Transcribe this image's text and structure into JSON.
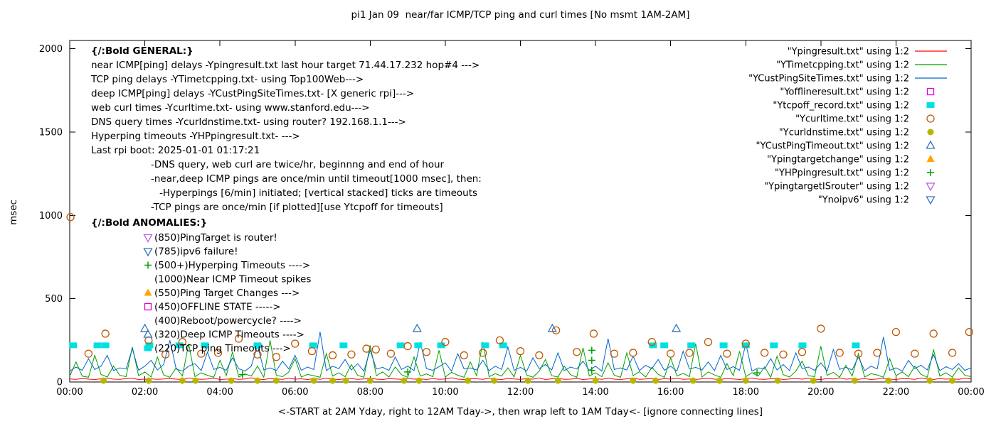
{
  "chart_data": {
    "type": "scatter",
    "title": "pi1 Jan 09  near/far ICMP/TCP ping and curl times [No msmt 1AM-2AM]",
    "ylabel": "msec",
    "xlabel": "<-START at 2AM Yday, right to 12AM Tday->, then wrap left to 1AM Tday<- [ignore connecting lines]",
    "legend_position": "top-right",
    "axes": {
      "xlim_hours": [
        0,
        24
      ],
      "ylim": [
        0,
        2050
      ],
      "y_ticks": [
        0,
        500,
        1000,
        1500,
        2000
      ],
      "x_tick_hours": [
        0,
        2,
        4,
        6,
        8,
        10,
        12,
        14,
        16,
        18,
        20,
        22,
        24
      ],
      "x_tick_labels": [
        "00:00",
        "02:00",
        "04:00",
        "06:00",
        "08:00",
        "10:00",
        "12:00",
        "14:00",
        "16:00",
        "18:00",
        "20:00",
        "22:00",
        "00:00"
      ]
    },
    "series": [
      {
        "id": "ypingresult",
        "label": "\"Ypingresult.txt\" using 1:2",
        "kind": "line",
        "color": "#ff0000",
        "y_values": [
          18,
          16,
          21,
          17,
          15,
          19,
          23,
          17,
          16,
          20,
          22,
          15,
          17,
          19,
          16,
          18,
          21,
          17,
          15,
          24,
          19,
          16,
          18,
          22,
          15,
          17,
          20,
          16,
          18,
          25,
          17,
          15,
          21,
          18,
          16,
          22,
          17,
          19,
          15,
          20,
          16,
          23,
          17,
          15,
          19,
          21,
          16,
          18,
          24,
          17,
          15,
          20,
          18,
          16,
          22,
          17,
          19,
          15,
          21,
          16,
          18,
          25,
          17,
          15,
          20,
          19,
          16,
          23,
          17,
          15,
          21,
          18,
          16,
          20,
          17,
          24,
          15,
          19,
          22,
          16,
          17,
          21,
          15,
          18,
          20,
          16,
          23,
          17,
          15,
          19,
          24,
          16,
          18,
          21,
          15,
          20,
          17,
          22,
          16,
          18,
          15,
          19,
          23,
          17,
          16,
          21,
          18,
          15,
          20,
          24,
          17,
          16,
          19,
          22,
          15,
          18,
          21,
          17,
          23,
          16,
          15,
          20,
          18,
          24,
          17,
          19,
          16,
          21,
          15,
          18,
          22,
          17,
          15,
          20,
          19,
          16,
          23,
          18,
          15,
          21,
          17,
          19,
          16,
          22,
          18
        ]
      },
      {
        "id": "ytimetcpping",
        "label": "\"YTimetcpping.txt\" using 1:2",
        "kind": "line",
        "color": "#00a000",
        "y_values": [
          35,
          120,
          35,
          28,
          160,
          45,
          30,
          95,
          40,
          32,
          210,
          38,
          60,
          30,
          150,
          42,
          28,
          85,
          36,
          230,
          32,
          55,
          40,
          28,
          130,
          38,
          180,
          30,
          48,
          36,
          95,
          28,
          250,
          40,
          32,
          60,
          140,
          30,
          45,
          38,
          28,
          170,
          36,
          55,
          32,
          105,
          40,
          28,
          220,
          38,
          60,
          30,
          90,
          44,
          28,
          150,
          36,
          48,
          32,
          190,
          30,
          58,
          40,
          28,
          120,
          38,
          240,
          32,
          50,
          36,
          85,
          30,
          160,
          42,
          28,
          65,
          135,
          38,
          30,
          95,
          44,
          28,
          205,
          36,
          55,
          32,
          115,
          40,
          28,
          175,
          38,
          62,
          30,
          88,
          46,
          28,
          145,
          36,
          52,
          32,
          230,
          30,
          60,
          42,
          28,
          110,
          38,
          185,
          32,
          55,
          36,
          90,
          28,
          155,
          44,
          30,
          65,
          125,
          38,
          32,
          215,
          40,
          58,
          28,
          100,
          36,
          170,
          30,
          50,
          42,
          28,
          140,
          38,
          60,
          32,
          95,
          46,
          28,
          195,
          36,
          55,
          30,
          85,
          40,
          32
        ]
      },
      {
        "id": "ycustpingsitetimes",
        "label": "\"YCustPingSiteTimes.txt\" using 1:2",
        "kind": "line",
        "color": "#0066cc",
        "y_values": [
          65,
          90,
          70,
          140,
          75,
          95,
          160,
          68,
          85,
          78,
          200,
          70,
          95,
          130,
          72,
          105,
          250,
          78,
          65,
          95,
          110,
          68,
          180,
          75,
          88,
          70,
          145,
          80,
          65,
          95,
          220,
          72,
          85,
          68,
          125,
          78,
          160,
          70,
          90,
          75,
          300,
          68,
          95,
          80,
          135,
          72,
          110,
          65,
          190,
          78,
          88,
          70,
          150,
          75,
          95,
          68,
          240,
          80,
          70,
          92,
          115,
          65,
          170,
          78,
          85,
          72,
          130,
          68,
          95,
          75,
          210,
          70,
          88,
          65,
          145,
          80,
          105,
          72,
          175,
          68,
          90,
          78,
          125,
          70,
          95,
          65,
          260,
          75,
          85,
          72,
          155,
          68,
          100,
          80,
          135,
          70,
          95,
          65,
          185,
          78,
          88,
          72,
          120,
          68,
          160,
          75,
          92,
          70,
          230,
          65,
          85,
          78,
          140,
          72,
          105,
          68,
          175,
          80,
          90,
          70,
          115,
          65,
          195,
          75,
          88,
          72,
          150,
          68,
          95,
          78,
          270,
          70,
          85,
          65,
          130,
          80,
          100,
          72,
          165,
          68,
          92,
          75,
          110,
          70,
          85
        ]
      },
      {
        "id": "yofflineresult",
        "label": "\"Yofflineresult.txt\" using 1:2",
        "kind": "points",
        "marker": "square-open",
        "color": "#e000e0",
        "points": []
      },
      {
        "id": "ytcpoff_record",
        "label": "\"Ytcpoff_record.txt\" using 1:2",
        "kind": "points",
        "marker": "square-filled",
        "color": "#00e0e0",
        "points": [
          [
            0.09,
            220
          ],
          [
            0.74,
            220
          ],
          [
            0.95,
            220
          ],
          [
            2.12,
            220
          ],
          [
            2.92,
            220
          ],
          [
            3.6,
            220
          ],
          [
            5.0,
            220
          ],
          [
            6.48,
            220
          ],
          [
            7.29,
            220
          ],
          [
            8.81,
            220
          ],
          [
            9.28,
            220
          ],
          [
            9.89,
            220
          ],
          [
            11.06,
            220
          ],
          [
            11.54,
            220
          ],
          [
            15.53,
            220
          ],
          [
            15.83,
            220
          ],
          [
            16.55,
            220
          ],
          [
            17.41,
            220
          ],
          [
            18.0,
            220
          ],
          [
            18.75,
            220
          ],
          [
            19.51,
            220
          ],
          [
            20.93,
            220
          ]
        ]
      },
      {
        "id": "ycurltime",
        "label": "\"Ycurltime.txt\" using 1:2",
        "kind": "points",
        "marker": "circle-open",
        "color": "#c05800",
        "points": [
          [
            0.02,
            990
          ],
          [
            0.5,
            170
          ],
          [
            0.95,
            290
          ],
          [
            2.1,
            250
          ],
          [
            2.55,
            165
          ],
          [
            3.0,
            240
          ],
          [
            3.5,
            170
          ],
          [
            3.95,
            175
          ],
          [
            4.5,
            260
          ],
          [
            5.0,
            165
          ],
          [
            5.5,
            150
          ],
          [
            6.0,
            230
          ],
          [
            6.45,
            185
          ],
          [
            7.0,
            160
          ],
          [
            7.5,
            165
          ],
          [
            7.9,
            200
          ],
          [
            8.15,
            195
          ],
          [
            8.55,
            170
          ],
          [
            9.0,
            215
          ],
          [
            9.5,
            180
          ],
          [
            10.0,
            240
          ],
          [
            10.5,
            160
          ],
          [
            11.0,
            175
          ],
          [
            11.45,
            250
          ],
          [
            12.0,
            185
          ],
          [
            12.5,
            160
          ],
          [
            12.95,
            310
          ],
          [
            13.5,
            180
          ],
          [
            13.95,
            290
          ],
          [
            14.5,
            170
          ],
          [
            15.0,
            175
          ],
          [
            15.5,
            240
          ],
          [
            16.0,
            170
          ],
          [
            16.5,
            175
          ],
          [
            17.0,
            240
          ],
          [
            17.5,
            170
          ],
          [
            18.0,
            230
          ],
          [
            18.5,
            175
          ],
          [
            19.0,
            165
          ],
          [
            19.5,
            180
          ],
          [
            20.0,
            320
          ],
          [
            20.5,
            175
          ],
          [
            21.0,
            170
          ],
          [
            21.5,
            175
          ],
          [
            22.0,
            300
          ],
          [
            22.5,
            170
          ],
          [
            23.0,
            290
          ],
          [
            23.5,
            175
          ],
          [
            23.95,
            300
          ]
        ]
      },
      {
        "id": "ycurldnstime",
        "label": "\"Ycurldnstime.txt\" using 1:2",
        "kind": "points",
        "marker": "circle-filled",
        "color": "#b8b500",
        "points": [
          [
            0.9,
            8
          ],
          [
            2.1,
            8
          ],
          [
            3.0,
            8
          ],
          [
            3.35,
            8
          ],
          [
            4.3,
            8
          ],
          [
            5.0,
            8
          ],
          [
            5.5,
            8
          ],
          [
            6.5,
            8
          ],
          [
            7.0,
            8
          ],
          [
            7.35,
            8
          ],
          [
            8.0,
            8
          ],
          [
            8.9,
            8
          ],
          [
            9.3,
            8
          ],
          [
            10.6,
            8
          ],
          [
            11.3,
            8
          ],
          [
            12.2,
            8
          ],
          [
            13.0,
            8
          ],
          [
            14.0,
            8
          ],
          [
            15.0,
            8
          ],
          [
            15.6,
            8
          ],
          [
            16.6,
            8
          ],
          [
            17.3,
            8
          ],
          [
            18.0,
            8
          ],
          [
            18.85,
            8
          ],
          [
            19.8,
            8
          ],
          [
            20.9,
            8
          ],
          [
            21.8,
            8
          ],
          [
            22.9,
            8
          ],
          [
            23.5,
            8
          ]
        ]
      },
      {
        "id": "ycustpingtimeout",
        "label": "\"YCustPingTimeout.txt\" using 1:2",
        "kind": "points",
        "marker": "triangle-up-open",
        "color": "#3377bb",
        "points": [
          [
            2.0,
            320
          ],
          [
            9.25,
            320
          ],
          [
            12.85,
            320
          ],
          [
            16.15,
            320
          ]
        ]
      },
      {
        "id": "ypingtargetchange",
        "label": "\"Ypingtargetchange\" using 1:2",
        "kind": "points",
        "marker": "triangle-up-filled",
        "color": "#ffa500",
        "points": []
      },
      {
        "id": "yhppingresult",
        "label": "\"YHPpingresult.txt\" using 1:2",
        "kind": "points",
        "marker": "plus",
        "color": "#00a000",
        "points": [
          [
            4.6,
            45
          ],
          [
            9.0,
            60
          ],
          [
            13.9,
            70
          ],
          [
            13.9,
            130
          ],
          [
            13.9,
            190
          ],
          [
            18.3,
            55
          ]
        ]
      },
      {
        "id": "ypingtargetisrouter",
        "label": "\"YpingtargetISrouter\" using 1:2",
        "kind": "points",
        "marker": "triangle-down-open",
        "color": "#bb66dd",
        "points": []
      },
      {
        "id": "ynoipv6",
        "label": "\"Ynoipv6\" using 1:2",
        "kind": "points",
        "marker": "triangle-down-open",
        "color": "#3377bb",
        "points": []
      }
    ],
    "annotations": {
      "general": {
        "heading": "{/:Bold GENERAL:}",
        "lines": [
          {
            "text": "near ICMP[ping] delays -Ypingresult.txt last hour target 71.44.17.232 hop#4 --->",
            "indent": 0
          },
          {
            "text": "TCP ping delays -YTimetcpping.txt- using Top100Web--->",
            "indent": 0
          },
          {
            "text": "deep ICMP[ping] delays -YCustPingSiteTimes.txt- [X generic rpi]--->",
            "indent": 0
          },
          {
            "text": "web curl times -Ycurltime.txt- using www.stanford.edu--->",
            "indent": 0
          },
          {
            "text": "DNS query times -Ycurldnstime.txt- using router? 192.168.1.1--->",
            "indent": 0
          },
          {
            "text": "Hyperping timeouts -YHPpingresult.txt- --->",
            "indent": 0
          },
          {
            "text": "Last rpi boot: 2025-01-01 01:17:21",
            "indent": 0
          },
          {
            "text": "-DNS query, web curl are twice/hr, beginnng and end of hour",
            "indent": 1
          },
          {
            "text": "-near,deep ICMP pings are once/min until timeout[1000 msec], then:",
            "indent": 1
          },
          {
            "text": "-Hyperpings [6/min] initiated; [vertical stacked] ticks are timeouts",
            "indent": 2
          },
          {
            "text": "-TCP pings are once/min [if plotted][use Ytcpoff for timeouts]",
            "indent": 1
          }
        ]
      },
      "anomalies": {
        "heading": "{/:Bold ANOMALIES:}",
        "items": [
          {
            "icon": "triangle-down-open",
            "icon_color": "#bb66dd",
            "text": "(850)PingTarget is router!"
          },
          {
            "icon": "triangle-down-open",
            "icon_color": "#3377bb",
            "text": "(785)ipv6 failure!"
          },
          {
            "icon": "plus",
            "icon_color": "#00a000",
            "text": "(500+)Hyperping Timeouts ---->"
          },
          {
            "icon": null,
            "text": "(1000)Near ICMP Timeout spikes"
          },
          {
            "icon": "triangle-up-filled",
            "icon_color": "#ffa500",
            "text": "(550)Ping Target Changes --->"
          },
          {
            "icon": "square-open",
            "icon_color": "#e000e0",
            "text": "(450)OFFLINE STATE ----->"
          },
          {
            "icon": null,
            "text": "(400)Reboot/powercycle? ---->"
          },
          {
            "icon": "triangle-up-open",
            "icon_color": "#3377bb",
            "text": "(320)Deep ICMP Timeouts ---->"
          },
          {
            "icon": "square-filled",
            "icon_color": "#00e0e0",
            "text": "(220)TCP ping Timeouts --->"
          }
        ]
      }
    }
  }
}
